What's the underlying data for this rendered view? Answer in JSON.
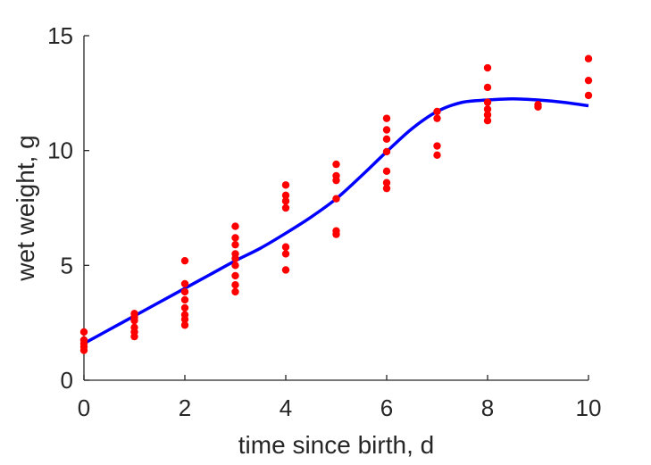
{
  "chart_data": {
    "type": "scatter",
    "title": "",
    "xlabel": "time since birth, d",
    "ylabel": "wet weight, g",
    "xlim": [
      0,
      10
    ],
    "ylim": [
      0,
      15
    ],
    "x_ticks": [
      0,
      2,
      4,
      6,
      8,
      10
    ],
    "y_ticks": [
      0,
      5,
      10,
      15
    ],
    "grid": false,
    "series": [
      {
        "type": "scatter",
        "color": "#ff0000",
        "points": [
          [
            0,
            2.1
          ],
          [
            0,
            1.75
          ],
          [
            0,
            1.6
          ],
          [
            0,
            1.45
          ],
          [
            0,
            1.3
          ],
          [
            1,
            2.9
          ],
          [
            1,
            2.75
          ],
          [
            1,
            2.6
          ],
          [
            1,
            2.3
          ],
          [
            1,
            2.1
          ],
          [
            1,
            1.9
          ],
          [
            2,
            5.2
          ],
          [
            2,
            4.2
          ],
          [
            2,
            3.85
          ],
          [
            2,
            3.5
          ],
          [
            2,
            3.15
          ],
          [
            2,
            2.85
          ],
          [
            2,
            2.65
          ],
          [
            2,
            2.4
          ],
          [
            3,
            6.7
          ],
          [
            3,
            6.2
          ],
          [
            3,
            5.9
          ],
          [
            3,
            5.5
          ],
          [
            3,
            5.3
          ],
          [
            3,
            5.0
          ],
          [
            3,
            4.55
          ],
          [
            3,
            4.15
          ],
          [
            3,
            3.85
          ],
          [
            4,
            8.5
          ],
          [
            4,
            8.05
          ],
          [
            4,
            7.8
          ],
          [
            4,
            7.5
          ],
          [
            4,
            5.8
          ],
          [
            4,
            5.5
          ],
          [
            4,
            4.8
          ],
          [
            5,
            9.4
          ],
          [
            5,
            8.9
          ],
          [
            5,
            8.7
          ],
          [
            5,
            7.9
          ],
          [
            5,
            6.5
          ],
          [
            5,
            6.35
          ],
          [
            6,
            11.4
          ],
          [
            6,
            10.9
          ],
          [
            6,
            10.5
          ],
          [
            6,
            9.95
          ],
          [
            6,
            9.1
          ],
          [
            6,
            8.6
          ],
          [
            6,
            8.35
          ],
          [
            7,
            11.7
          ],
          [
            7,
            11.4
          ],
          [
            7,
            10.2
          ],
          [
            7,
            9.8
          ],
          [
            8,
            13.6
          ],
          [
            8,
            12.75
          ],
          [
            8,
            12.1
          ],
          [
            8,
            11.8
          ],
          [
            8,
            11.55
          ],
          [
            8,
            11.3
          ],
          [
            9,
            12.0
          ],
          [
            9,
            11.9
          ],
          [
            10,
            14.0
          ],
          [
            10,
            13.05
          ],
          [
            10,
            12.4
          ]
        ]
      },
      {
        "type": "line",
        "color": "#0000ff",
        "points": [
          [
            0,
            1.6
          ],
          [
            0.5,
            2.2
          ],
          [
            1,
            2.8
          ],
          [
            1.5,
            3.4
          ],
          [
            2,
            4.0
          ],
          [
            2.5,
            4.6
          ],
          [
            3,
            5.2
          ],
          [
            3.5,
            5.75
          ],
          [
            4,
            6.4
          ],
          [
            4.5,
            7.1
          ],
          [
            5,
            7.9
          ],
          [
            5.5,
            8.9
          ],
          [
            6,
            9.95
          ],
          [
            6.5,
            10.95
          ],
          [
            7,
            11.7
          ],
          [
            7.5,
            12.1
          ],
          [
            8,
            12.2
          ],
          [
            8.5,
            12.25
          ],
          [
            9,
            12.2
          ],
          [
            9.5,
            12.1
          ],
          [
            10,
            11.95
          ]
        ]
      }
    ]
  }
}
